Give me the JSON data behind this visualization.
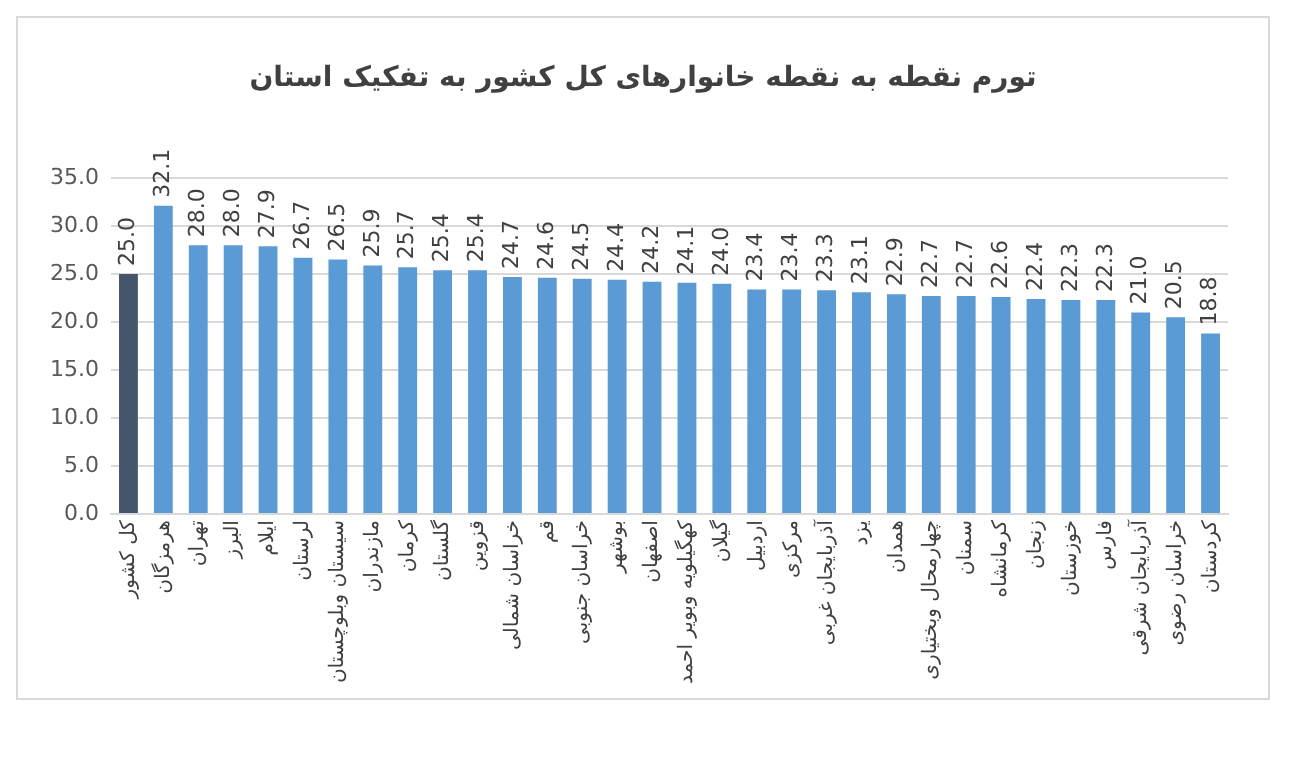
{
  "chart_data": {
    "type": "bar",
    "title": "تورم  نقطه به نقطه خانوارهای کل کشور به تفکیک استان",
    "categories": [
      "کل کشور",
      "هرمزگان",
      "تهران",
      "البرز",
      "ایلام",
      "لرستان",
      "سیستان وبلوچستان",
      "مازندران",
      "کرمان",
      "گلستان",
      "قزوین",
      "خراسان شمالی",
      "قم",
      "خراسان جنوبی",
      "بوشهر",
      "اصفهان",
      "کهگیلویه وبویر احمد",
      "گیلان",
      "اردبیل",
      "مرکزی",
      "آذربایجان غربی",
      "یزد",
      "همدان",
      "چهارمحال وبختیاری",
      "سمنان",
      "کرمانشاه",
      "زنجان",
      "خوزستان",
      "فارس",
      "آذربایجان شرقی",
      "خراسان رضوی",
      "کردستان"
    ],
    "values": [
      25.0,
      32.1,
      28.0,
      28.0,
      27.9,
      26.7,
      26.5,
      25.9,
      25.7,
      25.4,
      25.4,
      24.7,
      24.6,
      24.5,
      24.4,
      24.2,
      24.1,
      24.0,
      23.4,
      23.4,
      23.3,
      23.1,
      22.9,
      22.7,
      22.7,
      22.6,
      22.4,
      22.3,
      22.3,
      21.0,
      20.5,
      18.8
    ],
    "value_labels": [
      "25.0",
      "32.1",
      "28.0",
      "28.0",
      "27.9",
      "26.7",
      "26.5",
      "25.9",
      "25.7",
      "25.4",
      "25.4",
      "24.7",
      "24.6",
      "24.5",
      "24.4",
      "24.2",
      "24.1",
      "24.0",
      "23.4",
      "23.4",
      "23.3",
      "23.1",
      "22.9",
      "22.7",
      "22.7",
      "22.6",
      "22.4",
      "22.3",
      "22.3",
      "21.0",
      "20.5",
      "18.8"
    ],
    "colors": [
      "#44546a",
      "#5b9bd5",
      "#5b9bd5",
      "#5b9bd5",
      "#5b9bd5",
      "#5b9bd5",
      "#5b9bd5",
      "#5b9bd5",
      "#5b9bd5",
      "#5b9bd5",
      "#5b9bd5",
      "#5b9bd5",
      "#5b9bd5",
      "#5b9bd5",
      "#5b9bd5",
      "#5b9bd5",
      "#5b9bd5",
      "#5b9bd5",
      "#5b9bd5",
      "#5b9bd5",
      "#5b9bd5",
      "#5b9bd5",
      "#5b9bd5",
      "#5b9bd5",
      "#5b9bd5",
      "#5b9bd5",
      "#5b9bd5",
      "#5b9bd5",
      "#5b9bd5",
      "#5b9bd5",
      "#5b9bd5",
      "#5b9bd5"
    ],
    "ylim": [
      0,
      35
    ],
    "yticks": [
      {
        "value": 0,
        "label": "0.0"
      },
      {
        "value": 5,
        "label": "5.0"
      },
      {
        "value": 10,
        "label": "10.0"
      },
      {
        "value": 15,
        "label": "15.0"
      },
      {
        "value": 20,
        "label": "20.0"
      },
      {
        "value": 25,
        "label": "25.0"
      },
      {
        "value": 30,
        "label": "30.0"
      },
      {
        "value": 35,
        "label": "35.0"
      }
    ],
    "grid": "y",
    "legend": false
  }
}
